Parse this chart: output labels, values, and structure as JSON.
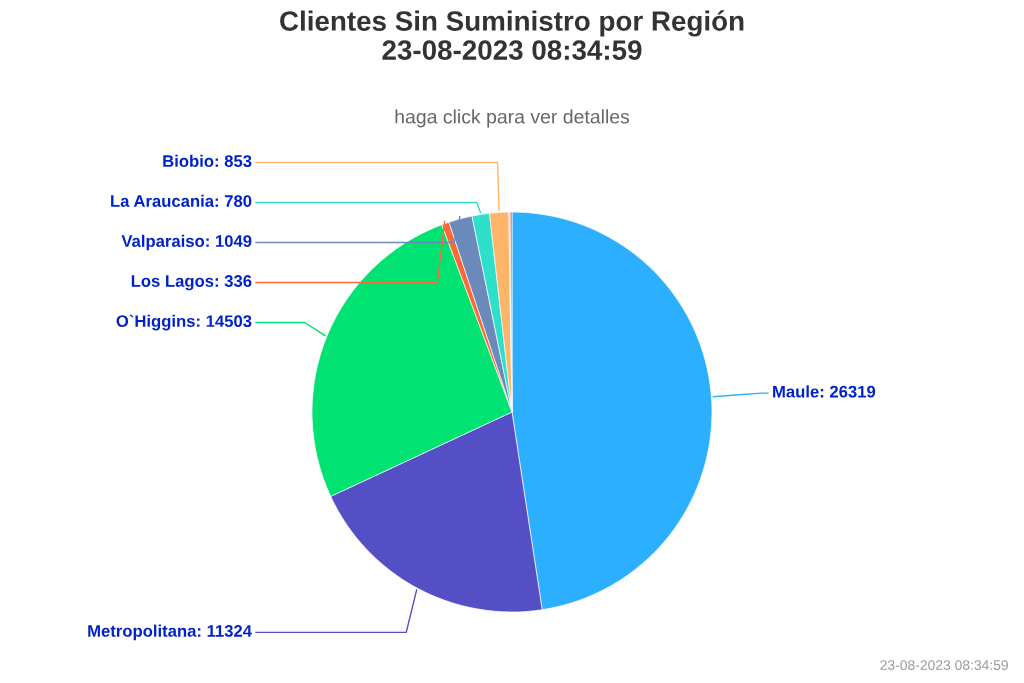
{
  "chart_data": {
    "type": "pie",
    "title": "Clientes Sin Suministro por Región\n23-08-2023 08:34:59",
    "subtitle": "haga click para ver detalles",
    "categories": [
      "Maule: 26319",
      "Metropolitana: 11324",
      "O`Higgins: 14503",
      "Los Lagos: 336",
      "Valparaiso: 1049",
      "La Araucania: 780",
      "Biobio: 853",
      null,
      null
    ],
    "values": [
      26319,
      11324,
      14503,
      336,
      1049,
      780,
      853,
      60,
      80
    ],
    "colors": [
      "#2caffe",
      "#544fc5",
      "#00e272",
      "#fe6a35",
      "#6b8abc",
      "#2ee0ca",
      "#feb56a",
      "#91e8e1",
      "#fa4b42"
    ],
    "annotations": [
      "23-08-2023 08:34:59"
    ]
  }
}
